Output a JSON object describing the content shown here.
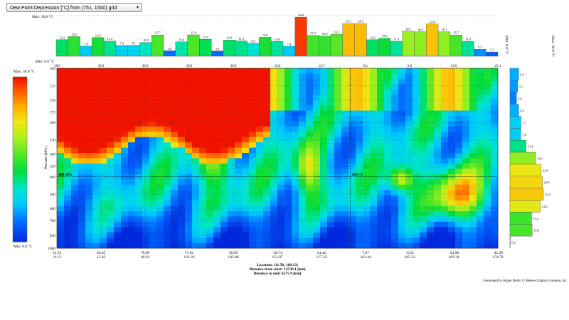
{
  "selector": {
    "value": "Dew Point Depression [°C] from (751, 1500) grid",
    "arrow": "▾"
  },
  "top_bar": {
    "max_label": "Max: 30.0 °C",
    "min_label": "Min: 0.0 °C",
    "right_label": "Min: 0.0 °C",
    "far_right_label": "Max: 30.0 °C"
  },
  "colorbar": {
    "max_label": "Max: 30.0 °C",
    "min_label": "Min: 0.0 °C"
  },
  "footer": {
    "location": "Location: (11.50, 168.13)",
    "distance_start": "Distance from start: 12539.1 [km]",
    "distance_end": "Distance to end: 6275.9 [km]",
    "credit": "Generated by Hyper Berry © Meteo-Graphics Systems Inc."
  },
  "chart_data": [
    {
      "type": "bar",
      "title": "",
      "ylim": [
        0,
        30
      ],
      "values": [
        12.2,
        14.5,
        7.4,
        13.8,
        11.2,
        7.9,
        8.1,
        10.2,
        15.7,
        4.0,
        10.6,
        15.8,
        12.5,
        3.8,
        12.0,
        11.3,
        9.6,
        14.0,
        10.9,
        7.4,
        28.8,
        15.4,
        14.9,
        16.3,
        24.1,
        24.1,
        12.2,
        13.3,
        11.0,
        18.5,
        18.0,
        23.8,
        18.1,
        15.7,
        11.0,
        5.1,
        3.1
      ]
    },
    {
      "type": "heatmap",
      "ylabel": "Pressure [hPa]",
      "y_ticks": [
        100,
        125,
        150,
        175,
        200,
        250,
        300,
        350,
        400,
        500,
        600,
        700,
        850,
        1000
      ],
      "x_ticks_top": [
        "100",
        "30.0",
        "30.0",
        "30.0",
        "30.0",
        "10.9",
        "13.7",
        "6.1",
        "6.6",
        "13.6",
        "25.1"
      ],
      "x_ticks_lon": [
        "51.53",
        "66.65",
        "76.90",
        "71.81",
        "56.65",
        "-40.74",
        "24.43",
        "7.97",
        "-8.52",
        "-24.98",
        "-41.29"
      ],
      "x_ticks_lat": [
        "-0.13",
        "15.03",
        "60.92",
        "121.93",
        "143.06",
        "151.97",
        "157.33",
        "161.44",
        "165.21",
        "169.34",
        "174.78"
      ],
      "cursor_label": "400 hPa",
      "cursor_value": "24.9 °C",
      "colorscale_range": [
        0,
        30
      ]
    },
    {
      "type": "bar",
      "orientation": "horizontal",
      "values": [
        6.2,
        5.5,
        4.6,
        6.2,
        7.7,
        7.6,
        11.4,
        18.1,
        21.8,
        22.8,
        23.5,
        21.4,
        15.2,
        15.6,
        0.2
      ]
    }
  ]
}
